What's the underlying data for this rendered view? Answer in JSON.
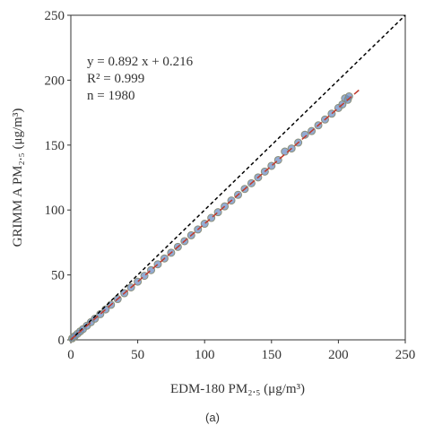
{
  "chart_data": {
    "type": "scatter",
    "xlabel": "EDM-180 PM₂.₅ (μg/m³)",
    "ylabel": "GRIMM A PM₂.₅ (μg/m³)",
    "annotations": [
      "y = 0.892 x + 0.216",
      "R² = 0.999",
      "n = 1980"
    ],
    "caption": "(a)",
    "xlim": [
      0,
      250
    ],
    "ylim": [
      0,
      250
    ],
    "xticks": [
      0,
      50,
      100,
      150,
      200,
      250
    ],
    "yticks": [
      0,
      50,
      100,
      150,
      200,
      250
    ],
    "grid": false,
    "series": [
      {
        "color": "#6f8fc4",
        "x": [
          1,
          2,
          3,
          5,
          7,
          9,
          12,
          15,
          18,
          22,
          26,
          30,
          35,
          40,
          45,
          50,
          55,
          60,
          65,
          70,
          75,
          80,
          85,
          90,
          95,
          100,
          105,
          110,
          115,
          120,
          125,
          130,
          135,
          140,
          145,
          150,
          155,
          160,
          165,
          170,
          175,
          180,
          185,
          190,
          195,
          200,
          203,
          205,
          207,
          208
        ],
        "values": [
          1.1,
          2.0,
          2.9,
          4.7,
          6.5,
          8.2,
          10.9,
          13.6,
          16.3,
          19.8,
          23.4,
          27.0,
          31.4,
          35.9,
          40.4,
          44.8,
          49.3,
          53.7,
          58.2,
          62.7,
          67.1,
          71.6,
          76.0,
          80.5,
          85.0,
          89.4,
          93.9,
          98.3,
          102.8,
          107.3,
          111.7,
          116.2,
          120.6,
          125.1,
          129.6,
          134.0,
          138.5,
          145.0,
          147.4,
          151.9,
          158.0,
          160.8,
          165.2,
          169.7,
          174.2,
          178.6,
          181.3,
          186.0,
          184.9,
          187.5
        ]
      }
    ],
    "fit_line": {
      "color": "#c0392b",
      "x": [
        0,
        217
      ],
      "values": [
        0.216,
        193.8
      ]
    },
    "identity_line": {
      "color": "#000000",
      "x": [
        0,
        250
      ],
      "values": [
        0,
        250
      ]
    }
  }
}
